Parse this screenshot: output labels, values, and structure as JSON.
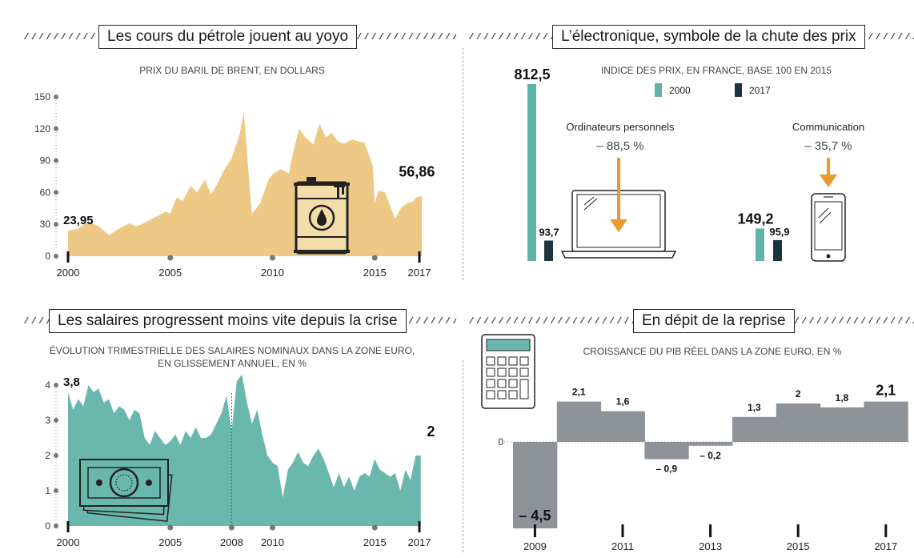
{
  "panels": {
    "oil": {
      "title": "Les cours du pétrole jouent au yoyo",
      "subtitle": "PRIX DU BARIL DE BRENT, EN DOLLARS"
    },
    "electronics": {
      "title": "L’électronique, symbole de la chute des prix",
      "subtitle": "INDICE DES PRIX, EN FRANCE, BASE 100 EN 2015",
      "legend": [
        {
          "label": "2000",
          "color": "#5fb3a9"
        },
        {
          "label": "2017",
          "color": "#1c3340"
        }
      ],
      "groups": [
        {
          "label": "Ordinateurs personnels",
          "change": "– 88,5 %",
          "icon": "laptop-icon"
        },
        {
          "label": "Communication",
          "change": "– 35,7 %",
          "icon": "smartphone-icon"
        }
      ]
    },
    "wages": {
      "title": "Les salaires progressent moins vite depuis la crise",
      "subtitle_line1": "ÉVOLUTION TRIMESTRIELLE DES SALAIRES NOMINAUX DANS LA ZONE EURO,",
      "subtitle_line2": "EN GLISSEMENT ANNUEL, EN %"
    },
    "gdp": {
      "title": "En dépit de la reprise",
      "subtitle": "CROISSANCE DU PIB RÉEL DANS LA ZONE EURO, EN %"
    }
  },
  "chart_data": [
    {
      "type": "area",
      "title": "Les cours du pétrole jouent au yoyo",
      "subtitle": "PRIX DU BARIL DE BRENT, EN DOLLARS",
      "color": "#edc985",
      "ylim": [
        0,
        150
      ],
      "yticks": [
        0,
        30,
        60,
        90,
        120,
        150
      ],
      "xlim": [
        2000,
        2017.3
      ],
      "xticks": [
        2000,
        2005,
        2010,
        2015,
        2017
      ],
      "annotations": [
        {
          "x": 2000,
          "y": 23.95,
          "text": "23,95"
        },
        {
          "x": 2017,
          "y": 56.86,
          "text": "56,86"
        }
      ],
      "x": [
        2000.0,
        2000.5,
        2001.0,
        2001.5,
        2002.0,
        2002.5,
        2003.0,
        2003.3,
        2003.6,
        2004.0,
        2004.4,
        2004.8,
        2005.0,
        2005.3,
        2005.6,
        2006.0,
        2006.3,
        2006.7,
        2007.0,
        2007.3,
        2007.6,
        2008.0,
        2008.4,
        2008.6,
        2008.9,
        2009.0,
        2009.4,
        2009.8,
        2010.0,
        2010.4,
        2010.8,
        2011.0,
        2011.3,
        2011.6,
        2012.0,
        2012.3,
        2012.6,
        2012.9,
        2013.2,
        2013.5,
        2013.9,
        2014.2,
        2014.5,
        2014.9,
        2015.0,
        2015.2,
        2015.5,
        2015.8,
        2016.0,
        2016.3,
        2016.6,
        2016.9,
        2017.0,
        2017.3
      ],
      "y": [
        24,
        26,
        33,
        28,
        20,
        26,
        31,
        28,
        30,
        34,
        38,
        42,
        40,
        55,
        52,
        66,
        60,
        72,
        58,
        68,
        80,
        92,
        115,
        136,
        60,
        40,
        50,
        72,
        77,
        82,
        78,
        97,
        120,
        112,
        105,
        125,
        112,
        116,
        108,
        106,
        110,
        108,
        107,
        85,
        50,
        62,
        60,
        45,
        35,
        46,
        50,
        52,
        55,
        57
      ]
    },
    {
      "type": "bar",
      "title": "L’électronique, symbole de la chute des prix",
      "subtitle": "INDICE DES PRIX, EN FRANCE, BASE 100 EN 2015",
      "categories": [
        "Ordinateurs personnels",
        "Communication"
      ],
      "series": [
        {
          "name": "2000",
          "values": [
            812.5,
            149.2
          ],
          "labels": [
            "812,5",
            "149,2"
          ],
          "color": "#5fb3a9"
        },
        {
          "name": "2017",
          "values": [
            93.7,
            95.9
          ],
          "labels": [
            "93,7",
            "95,9"
          ],
          "color": "#1c3340"
        }
      ],
      "changes": [
        "– 88,5 %",
        "– 35,7 %"
      ]
    },
    {
      "type": "area",
      "title": "Les salaires progressent moins vite depuis la crise",
      "subtitle": "ÉVOLUTION TRIMESTRIELLE DES SALAIRES NOMINAUX DANS LA ZONE EURO, EN GLISSEMENT ANNUEL, EN %",
      "color": "#6ab7ae",
      "ylim": [
        0,
        4
      ],
      "yticks": [
        0,
        1,
        2,
        3,
        4
      ],
      "xlim": [
        2000,
        2017.3
      ],
      "xticks": [
        2000,
        2005,
        2008,
        2010,
        2015,
        2017
      ],
      "annotations": [
        {
          "x": 2000,
          "y": 3.8,
          "text": "3,8"
        },
        {
          "x": 2017,
          "y": 2,
          "text": "2"
        }
      ],
      "x": [
        2000.0,
        2000.25,
        2000.5,
        2000.75,
        2001.0,
        2001.25,
        2001.5,
        2001.75,
        2002.0,
        2002.25,
        2002.5,
        2002.75,
        2003.0,
        2003.25,
        2003.5,
        2003.75,
        2004.0,
        2004.25,
        2004.5,
        2004.75,
        2005.0,
        2005.25,
        2005.5,
        2005.75,
        2006.0,
        2006.25,
        2006.5,
        2006.75,
        2007.0,
        2007.25,
        2007.5,
        2007.75,
        2008.0,
        2008.25,
        2008.5,
        2008.75,
        2009.0,
        2009.25,
        2009.5,
        2009.75,
        2010.0,
        2010.25,
        2010.5,
        2010.75,
        2011.0,
        2011.25,
        2011.5,
        2011.75,
        2012.0,
        2012.25,
        2012.5,
        2012.75,
        2013.0,
        2013.25,
        2013.5,
        2013.75,
        2014.0,
        2014.25,
        2014.5,
        2014.75,
        2015.0,
        2015.25,
        2015.5,
        2015.75,
        2016.0,
        2016.25,
        2016.5,
        2016.75,
        2017.0,
        2017.25
      ],
      "y": [
        3.8,
        3.3,
        3.6,
        3.4,
        4.0,
        3.8,
        3.9,
        3.5,
        3.6,
        3.2,
        3.4,
        3.3,
        3.0,
        3.3,
        3.2,
        2.5,
        2.3,
        2.7,
        2.5,
        2.3,
        2.4,
        2.6,
        2.3,
        2.7,
        2.5,
        2.8,
        2.5,
        2.5,
        2.6,
        2.9,
        3.2,
        3.7,
        2.7,
        4.1,
        4.3,
        3.5,
        2.9,
        3.3,
        2.6,
        2.0,
        1.8,
        1.7,
        0.8,
        1.6,
        1.8,
        2.1,
        1.8,
        1.7,
        2.0,
        2.2,
        1.9,
        1.5,
        1.1,
        1.5,
        1.1,
        1.4,
        1.0,
        1.4,
        1.5,
        1.4,
        1.9,
        1.6,
        1.5,
        1.4,
        1.5,
        1.0,
        1.6,
        1.3,
        2.0,
        2.0
      ],
      "divider": 2008
    },
    {
      "type": "bar",
      "title": "En dépit de la reprise",
      "subtitle": "CROISSANCE DU PIB RÉEL DANS LA ZONE EURO, EN %",
      "categories": [
        "2009",
        "2010",
        "2011",
        "2012",
        "2013",
        "2014",
        "2015",
        "2016",
        "2017"
      ],
      "values": [
        -4.5,
        2.1,
        1.6,
        -0.9,
        -0.2,
        1.3,
        2.0,
        1.8,
        2.1
      ],
      "labels": [
        "– 4,5",
        "2,1",
        "1,6",
        "– 0,9",
        "– 0,2",
        "1,3",
        "2",
        "1,8",
        "2,1"
      ],
      "xticks": [
        "2009",
        "2011",
        "2013",
        "2015",
        "2017"
      ],
      "zero_label": "0",
      "color": "#8e9299"
    }
  ]
}
